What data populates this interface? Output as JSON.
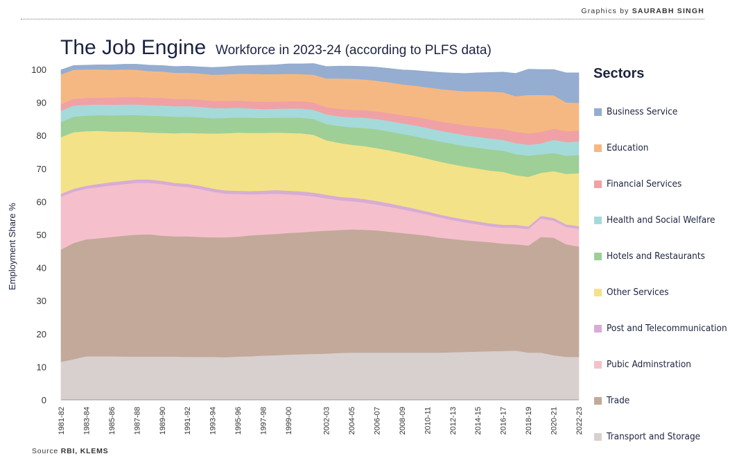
{
  "header": {
    "credit_prefix": "Graphics by",
    "credit_name": "SAURABH SINGH",
    "title": "The Job Engine",
    "subtitle": "Workforce in 2023-24 (according to PLFS data)"
  },
  "legend": {
    "title": "Sectors"
  },
  "footer": {
    "source_prefix": "Source",
    "source_name": "RBI, KLEMS"
  },
  "chart_data": {
    "type": "area",
    "stacked": true,
    "ylabel": "Employment Share %",
    "xlabel": "",
    "ylim": [
      0,
      100
    ],
    "yticks": [
      0,
      10,
      20,
      30,
      40,
      50,
      60,
      70,
      80,
      90,
      100
    ],
    "grid": false,
    "legend_placement": "right",
    "x": [
      "1981-82",
      "1982-83",
      "1983-84",
      "1984-85",
      "1985-86",
      "1986-87",
      "1987-88",
      "1988-89",
      "1989-90",
      "1990-91",
      "1991-92",
      "1992-93",
      "1993-94",
      "1994-95",
      "1995-96",
      "1996-97",
      "1997-98",
      "1998-99",
      "1999-00",
      "2000-01",
      "2001-02",
      "2002-03",
      "2003-04",
      "2004-05",
      "2005-06",
      "2006-07",
      "2007-08",
      "2008-09",
      "2009-10",
      "2010-11",
      "2011-12",
      "2012-13",
      "2013-14",
      "2014-15",
      "2015-16",
      "2016-17",
      "2017-18",
      "2018-19",
      "2019-20",
      "2020-21",
      "2021-22",
      "2022-23"
    ],
    "x_tick_labels": [
      "1981-82",
      "1983-84",
      "1985-86",
      "1987-88",
      "1989-90",
      "1991-92",
      "1993-94",
      "1995-96",
      "1997-98",
      "1999-00",
      "2002-03",
      "2004-05",
      "2006-07",
      "2008-09",
      "2010-11",
      "2012-13",
      "2014-15",
      "2016-17",
      "2018-19",
      "2020-21",
      "2022-23"
    ],
    "series": [
      {
        "name": "Transport and Storage",
        "color": "#d8d0cf",
        "values": [
          11.5,
          12.3,
          13.2,
          13.2,
          13.2,
          13.1,
          13.1,
          13.1,
          13.1,
          13.1,
          13.0,
          13.0,
          13.0,
          12.9,
          13.1,
          13.2,
          13.4,
          13.5,
          13.7,
          13.8,
          13.9,
          14.0,
          14.2,
          14.3,
          14.3,
          14.3,
          14.3,
          14.3,
          14.3,
          14.3,
          14.3,
          14.4,
          14.5,
          14.6,
          14.7,
          14.8,
          14.9,
          14.3,
          14.3,
          13.5,
          13.0,
          13.0
        ]
      },
      {
        "name": "Trade",
        "color": "#c3a99a",
        "values": [
          34.0,
          35.2,
          35.4,
          35.7,
          36.1,
          36.6,
          36.9,
          37.0,
          36.6,
          36.4,
          36.5,
          36.3,
          36.2,
          36.3,
          36.3,
          36.6,
          36.6,
          36.7,
          36.8,
          36.9,
          37.1,
          37.2,
          37.2,
          37.3,
          37.2,
          37.0,
          36.6,
          36.2,
          35.8,
          35.4,
          34.8,
          34.3,
          33.8,
          33.4,
          33.0,
          32.5,
          32.2,
          32.4,
          35.0,
          35.6,
          34.1,
          33.4
        ]
      },
      {
        "name": "Pubic Adminstration",
        "color": "#f5c0cc",
        "values": [
          16.0,
          15.5,
          15.3,
          15.5,
          15.6,
          15.6,
          15.7,
          15.6,
          15.6,
          15.2,
          14.9,
          14.5,
          13.8,
          13.2,
          12.9,
          12.4,
          12.3,
          12.2,
          11.7,
          11.3,
          10.6,
          9.8,
          9.0,
          8.5,
          8.2,
          7.8,
          7.5,
          7.2,
          6.8,
          6.4,
          6.1,
          5.7,
          5.4,
          5.1,
          4.8,
          4.8,
          5.0,
          5.0,
          5.6,
          5.1,
          5.2,
          5.4
        ]
      },
      {
        "name": "Post and Telecommunication",
        "color": "#d8acd4",
        "values": [
          0.9,
          0.9,
          0.9,
          1.0,
          1.0,
          1.0,
          1.0,
          1.0,
          1.0,
          1.0,
          1.0,
          1.0,
          1.0,
          1.0,
          1.0,
          1.0,
          1.0,
          1.1,
          1.1,
          1.1,
          1.1,
          1.1,
          1.1,
          1.1,
          1.1,
          1.1,
          1.1,
          1.0,
          1.0,
          0.9,
          0.9,
          0.9,
          0.9,
          0.9,
          0.9,
          0.9,
          0.9,
          0.8,
          0.8,
          0.9,
          0.8,
          0.8
        ]
      },
      {
        "name": "Other Services",
        "color": "#f4e288",
        "values": [
          17.1,
          17.1,
          16.5,
          16.0,
          15.3,
          14.9,
          14.4,
          14.2,
          14.5,
          15.0,
          15.4,
          15.9,
          16.6,
          17.3,
          17.6,
          17.6,
          17.5,
          17.4,
          17.5,
          17.6,
          17.5,
          16.5,
          16.3,
          16.0,
          16.0,
          16.0,
          16.0,
          16.0,
          16.0,
          16.0,
          16.0,
          16.0,
          16.0,
          16.0,
          16.0,
          16.0,
          15.0,
          15.0,
          13.0,
          14.1,
          15.3,
          16.0
        ]
      },
      {
        "name": "Hotels and Restaurants",
        "color": "#9ecf96",
        "values": [
          4.6,
          4.7,
          4.7,
          4.8,
          4.9,
          5.0,
          5.1,
          5.1,
          5.1,
          5.0,
          4.9,
          4.8,
          4.6,
          4.6,
          4.6,
          4.6,
          4.5,
          4.5,
          4.6,
          4.7,
          4.8,
          4.9,
          5.1,
          5.3,
          5.5,
          5.7,
          5.7,
          5.8,
          5.9,
          6.0,
          6.1,
          6.2,
          6.2,
          6.3,
          6.4,
          6.4,
          6.4,
          6.4,
          5.6,
          5.5,
          5.5,
          5.5
        ]
      },
      {
        "name": "Health and Social Welfare",
        "color": "#a5dadb",
        "values": [
          3.4,
          3.4,
          3.3,
          3.2,
          3.2,
          3.2,
          3.2,
          3.2,
          3.2,
          3.2,
          3.2,
          3.2,
          3.1,
          3.0,
          2.9,
          2.8,
          2.7,
          2.7,
          2.8,
          2.8,
          2.8,
          2.9,
          2.9,
          3.0,
          3.1,
          3.1,
          3.2,
          3.2,
          3.3,
          3.3,
          3.3,
          3.3,
          3.3,
          3.3,
          3.3,
          3.3,
          3.3,
          3.3,
          3.3,
          4.0,
          4.1,
          4.1
        ]
      },
      {
        "name": "Financial Services",
        "color": "#f0a1a5",
        "values": [
          2.0,
          2.0,
          2.1,
          2.1,
          2.2,
          2.3,
          2.3,
          2.3,
          2.3,
          2.2,
          2.2,
          2.2,
          2.2,
          2.2,
          2.2,
          2.2,
          2.2,
          2.2,
          2.2,
          2.2,
          2.2,
          2.2,
          2.3,
          2.3,
          2.3,
          2.3,
          2.4,
          2.5,
          2.6,
          2.7,
          2.8,
          2.9,
          3.0,
          3.1,
          3.2,
          3.3,
          3.4,
          3.5,
          3.5,
          3.4,
          3.3,
          3.3
        ]
      },
      {
        "name": "Education",
        "color": "#f6b882",
        "values": [
          9.0,
          8.8,
          8.6,
          8.5,
          8.4,
          8.3,
          8.2,
          8.0,
          8.0,
          7.9,
          7.9,
          7.9,
          7.9,
          8.0,
          8.1,
          8.3,
          8.4,
          8.3,
          8.3,
          8.2,
          8.4,
          8.7,
          9.2,
          9.4,
          9.3,
          9.3,
          9.3,
          9.3,
          9.4,
          9.6,
          9.8,
          10.0,
          10.3,
          10.7,
          11.0,
          11.1,
          10.8,
          11.6,
          11.2,
          10.1,
          8.7,
          8.4
        ]
      },
      {
        "name": "Business Service",
        "color": "#94add0",
        "values": [
          1.4,
          1.3,
          1.3,
          1.4,
          1.5,
          1.6,
          1.7,
          1.8,
          1.8,
          1.9,
          2.0,
          2.0,
          2.2,
          2.3,
          2.4,
          2.5,
          2.7,
          2.8,
          3.0,
          3.1,
          3.4,
          3.6,
          3.7,
          3.8,
          3.9,
          4.1,
          4.2,
          4.4,
          4.6,
          4.8,
          5.0,
          5.2,
          5.4,
          5.6,
          5.8,
          6.1,
          6.9,
          7.8,
          7.7,
          7.8,
          9.0,
          9.1
        ]
      }
    ]
  }
}
